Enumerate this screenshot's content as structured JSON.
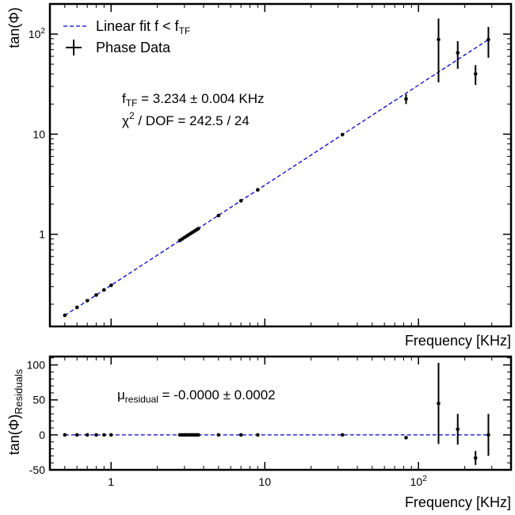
{
  "colors": {
    "fit_line": "#0000cc",
    "data": "#000000"
  },
  "chart_data": [
    {
      "type": "scatter",
      "x_scale": "log",
      "y_scale": "log",
      "xlabel": "Frequency [KHz]",
      "ylabel": "tan(Φ)",
      "xlim": [
        0.4,
        400
      ],
      "ylim": [
        0.12,
        200
      ],
      "x_ticks": [
        {
          "value": 1,
          "label": "1"
        },
        {
          "value": 10,
          "label": "10"
        },
        {
          "value": 100,
          "label": "10",
          "sup": "2"
        }
      ],
      "y_ticks": [
        {
          "value": 1,
          "label": "1"
        },
        {
          "value": 10,
          "label": "10"
        },
        {
          "value": 100,
          "label": "10",
          "sup": "2"
        }
      ],
      "legend": {
        "placement": "top-left",
        "fit_label": "Linear fit f < f",
        "fit_label_sub": "TF",
        "data_label": "Phase Data"
      },
      "annotation": {
        "fTF_main": "f",
        "fTF_sub": "TF",
        "fTF_value": " = 3.234 ± 0.004 KHz",
        "chi2_main": "χ",
        "chi2_sup": "2",
        "chi2_value": " / DOF = 242.5 / 24"
      },
      "fit_line": {
        "slope": 1,
        "f_tf": 3.234,
        "x_range": [
          0.5,
          290
        ]
      },
      "series": [
        {
          "name": "Phase Data",
          "points": [
            {
              "x": 0.5,
              "y": 0.155,
              "yerr": 0
            },
            {
              "x": 0.6,
              "y": 0.186,
              "yerr": 0
            },
            {
              "x": 0.7,
              "y": 0.217,
              "yerr": 0
            },
            {
              "x": 0.8,
              "y": 0.247,
              "yerr": 0
            },
            {
              "x": 0.9,
              "y": 0.278,
              "yerr": 0
            },
            {
              "x": 1.0,
              "y": 0.309,
              "yerr": 0
            },
            {
              "x": 2.8,
              "y": 0.866,
              "yerr": 0
            },
            {
              "x": 2.9,
              "y": 0.897,
              "yerr": 0
            },
            {
              "x": 3.0,
              "y": 0.928,
              "yerr": 0
            },
            {
              "x": 3.1,
              "y": 0.959,
              "yerr": 0
            },
            {
              "x": 3.2,
              "y": 0.99,
              "yerr": 0
            },
            {
              "x": 3.3,
              "y": 1.02,
              "yerr": 0
            },
            {
              "x": 3.4,
              "y": 1.05,
              "yerr": 0
            },
            {
              "x": 3.5,
              "y": 1.08,
              "yerr": 0
            },
            {
              "x": 3.6,
              "y": 1.11,
              "yerr": 0
            },
            {
              "x": 3.7,
              "y": 1.14,
              "yerr": 0
            },
            {
              "x": 5.0,
              "y": 1.54,
              "yerr": 0
            },
            {
              "x": 7.0,
              "y": 2.16,
              "yerr": 0
            },
            {
              "x": 9.0,
              "y": 2.78,
              "yerr": 0
            },
            {
              "x": 32.0,
              "y": 9.9,
              "yerr": 0
            },
            {
              "x": 83.0,
              "y": 22.5,
              "yerr": 2.5
            },
            {
              "x": 135.0,
              "y": 88.0,
              "yerr": 55.0
            },
            {
              "x": 180.0,
              "y": 65.0,
              "yerr": 20.0
            },
            {
              "x": 235.0,
              "y": 40.0,
              "yerr": 9.0
            },
            {
              "x": 285.0,
              "y": 88.0,
              "yerr": 30.0
            }
          ]
        }
      ]
    },
    {
      "type": "scatter",
      "x_scale": "log",
      "y_scale": "linear",
      "xlabel": "Frequency [KHz]",
      "ylabel_main": "tan(Φ)",
      "ylabel_sub": "Residuals",
      "xlim": [
        0.4,
        400
      ],
      "ylim": [
        -50,
        112
      ],
      "x_ticks": [
        {
          "value": 1,
          "label": "1"
        },
        {
          "value": 10,
          "label": "10"
        },
        {
          "value": 100,
          "label": "10",
          "sup": "2"
        }
      ],
      "y_ticks": [
        {
          "value": -50,
          "label": "-50"
        },
        {
          "value": 0,
          "label": "0"
        },
        {
          "value": 50,
          "label": "50"
        },
        {
          "value": 100,
          "label": "100"
        }
      ],
      "annotation": {
        "mu_main": "μ",
        "mu_sub": "residual",
        "mu_value": " = -0.0000 ± 0.0002"
      },
      "zero_line": 0,
      "series": [
        {
          "name": "Residuals",
          "points": [
            {
              "x": 0.5,
              "y": 0,
              "yerr": 0
            },
            {
              "x": 0.6,
              "y": 0,
              "yerr": 0
            },
            {
              "x": 0.7,
              "y": 0,
              "yerr": 0
            },
            {
              "x": 0.8,
              "y": 0,
              "yerr": 0
            },
            {
              "x": 0.9,
              "y": 0,
              "yerr": 0
            },
            {
              "x": 1.0,
              "y": 0,
              "yerr": 0
            },
            {
              "x": 2.8,
              "y": 0,
              "yerr": 0
            },
            {
              "x": 2.9,
              "y": 0,
              "yerr": 0
            },
            {
              "x": 3.0,
              "y": 0,
              "yerr": 0
            },
            {
              "x": 3.1,
              "y": 0,
              "yerr": 0
            },
            {
              "x": 3.2,
              "y": 0,
              "yerr": 0
            },
            {
              "x": 3.3,
              "y": 0,
              "yerr": 0
            },
            {
              "x": 3.4,
              "y": 0,
              "yerr": 0
            },
            {
              "x": 3.5,
              "y": 0,
              "yerr": 0
            },
            {
              "x": 3.6,
              "y": 0,
              "yerr": 0
            },
            {
              "x": 3.7,
              "y": 0,
              "yerr": 0
            },
            {
              "x": 5.0,
              "y": 0,
              "yerr": 0
            },
            {
              "x": 7.0,
              "y": 0,
              "yerr": 0
            },
            {
              "x": 9.0,
              "y": 0,
              "yerr": 0
            },
            {
              "x": 32.0,
              "y": 0,
              "yerr": 0
            },
            {
              "x": 83.0,
              "y": -4,
              "yerr": 2
            },
            {
              "x": 135.0,
              "y": 45,
              "yerr": 58
            },
            {
              "x": 180.0,
              "y": 8,
              "yerr": 22
            },
            {
              "x": 235.0,
              "y": -33,
              "yerr": 10
            },
            {
              "x": 285.0,
              "y": 0,
              "yerr": 30
            }
          ]
        }
      ]
    }
  ]
}
